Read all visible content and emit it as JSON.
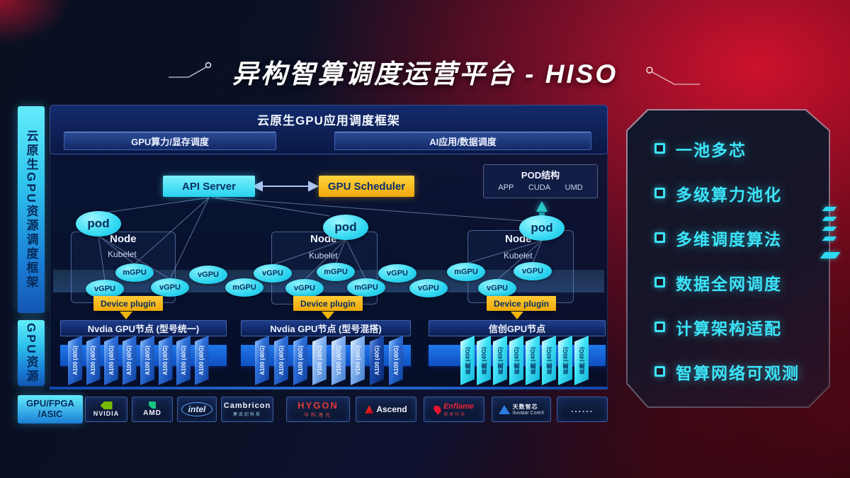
{
  "title": {
    "text": "异构智算调度运营平台 - HISO"
  },
  "sidebar": {
    "top": "云原生GPU资源调度框架",
    "bottom": "GPU资源"
  },
  "framework": {
    "header": "云原生GPU应用调度框架",
    "bars": [
      {
        "label": "GPU算力/显存调度"
      },
      {
        "label": "AI应用/数据调度"
      }
    ]
  },
  "control": {
    "api_server": "API Server",
    "gpu_scheduler": "GPU Scheduler"
  },
  "pod_structure": {
    "title": "POD结构",
    "items": [
      {
        "label": "APP"
      },
      {
        "label": "CUDA"
      },
      {
        "label": "UMD"
      }
    ]
  },
  "nodes": [
    {
      "label": "Node",
      "agent": "Kubelet",
      "plugin": "Device plugin",
      "pod": "pod"
    },
    {
      "label": "Node",
      "agent": "Kubelet",
      "plugin": "Device plugin",
      "pod": "pod"
    },
    {
      "label": "Node",
      "agent": "Kubelet",
      "plugin": "Device plugin",
      "pod": "pod"
    }
  ],
  "gpu_ellipses": [
    {
      "label": "vGPU"
    },
    {
      "label": "mGPU"
    },
    {
      "label": "vGPU"
    },
    {
      "label": "vGPU"
    },
    {
      "label": "mGPU"
    },
    {
      "label": "vGPU"
    },
    {
      "label": "vGPU"
    },
    {
      "label": "mGPU"
    },
    {
      "label": "mGPU"
    },
    {
      "label": "vGPU"
    },
    {
      "label": "vGPU"
    },
    {
      "label": "mGPU"
    },
    {
      "label": "vGPU"
    },
    {
      "label": "vGPU"
    }
  ],
  "gpu_groups": [
    {
      "title": "Nvdia GPU节点 (型号统一)",
      "cards": [
        {
          "label": "A100 (40G)",
          "variant": "blue"
        },
        {
          "label": "A100 (40G)",
          "variant": "blue"
        },
        {
          "label": "A100 (40G)",
          "variant": "blue"
        },
        {
          "label": "A100 (40G)",
          "variant": "blue"
        },
        {
          "label": "A100 (40G)",
          "variant": "blue"
        },
        {
          "label": "A100 (40G)",
          "variant": "blue"
        },
        {
          "label": "A100 (40G)",
          "variant": "blue"
        },
        {
          "label": "A100 (40G)",
          "variant": "blue"
        }
      ]
    },
    {
      "title": "Nvdia GPU节点 (型号混搭)",
      "cards": [
        {
          "label": "A100 (40G)",
          "variant": "blue"
        },
        {
          "label": "A100 (40G)",
          "variant": "blue"
        },
        {
          "label": "A100 (40G)",
          "variant": "blue"
        },
        {
          "label": "V100 (40G)",
          "variant": "light"
        },
        {
          "label": "V100 (40G)",
          "variant": "light"
        },
        {
          "label": "V100 (40G)",
          "variant": "light"
        },
        {
          "label": "A100 (40G)",
          "variant": "dark"
        },
        {
          "label": "A100 (40G)",
          "variant": "blue"
        }
      ]
    },
    {
      "title": "信创GPU节点",
      "cards": [
        {
          "label": "昇腾 (40G)",
          "variant": "cyan"
        },
        {
          "label": "昇腾 (40G)",
          "variant": "cyan"
        },
        {
          "label": "昇腾 (40G)",
          "variant": "cyan"
        },
        {
          "label": "昇腾 (40G)",
          "variant": "cyan"
        },
        {
          "label": "昇腾 (40G)",
          "variant": "cyan"
        },
        {
          "label": "昇腾 (40G)",
          "variant": "cyan"
        },
        {
          "label": "昇腾 (40G)",
          "variant": "cyan"
        },
        {
          "label": "昇腾 (40G)",
          "variant": "cyan"
        }
      ]
    }
  ],
  "hardware": {
    "line1": "GPU/FPGA",
    "line2": "/ASIC",
    "vendors": [
      {
        "name": "NVIDIA",
        "type": "nvidia"
      },
      {
        "name": "AMD",
        "type": "amd"
      },
      {
        "name": "intel",
        "type": "intel"
      },
      {
        "name": "Cambricon",
        "sub": "寒武纪科技",
        "type": "cambricon"
      },
      {
        "name": "HYGON",
        "sub": "中科海光",
        "type": "hygon"
      },
      {
        "name": "Ascend",
        "type": "ascend"
      },
      {
        "name": "Enflame",
        "sub": "燧原科技",
        "type": "enflame"
      },
      {
        "name": "天数智芯",
        "sub": "Iluvatar CoreX",
        "type": "iluvatar"
      },
      {
        "name": "......",
        "type": "dots"
      }
    ]
  },
  "features": {
    "items": [
      {
        "label": "一池多芯"
      },
      {
        "label": "多级算力池化"
      },
      {
        "label": "多维调度算法"
      },
      {
        "label": "数据全网调度"
      },
      {
        "label": "计算架构适配"
      },
      {
        "label": "智算网络可观测"
      }
    ]
  },
  "colors": {
    "accent_cyan": "#3ce4f8",
    "accent_yellow": "#f0b40e",
    "card_blue": "#2e6fd8",
    "bg_red": "#b11226"
  }
}
